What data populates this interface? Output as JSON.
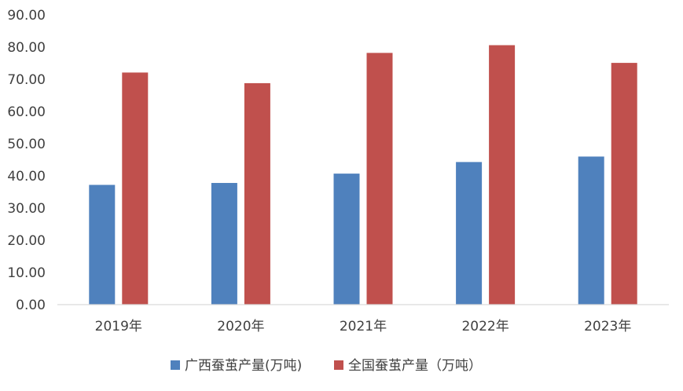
{
  "chart_data": {
    "type": "bar",
    "title": "",
    "xlabel": "",
    "ylabel": "",
    "categories": [
      "2019年",
      "2020年",
      "2021年",
      "2022年",
      "2023年"
    ],
    "series": [
      {
        "name": "广西蚕茧产量(万吨)",
        "color": "#4F81BD",
        "values": [
          37.2,
          37.8,
          40.7,
          44.3,
          46.0
        ]
      },
      {
        "name": "全国蚕茧产量（万吨）",
        "color": "#C0504D",
        "values": [
          72.1,
          68.8,
          78.2,
          80.6,
          75.1
        ]
      }
    ],
    "ylim": [
      0,
      90
    ],
    "yticks": [
      "0.00",
      "10.00",
      "20.00",
      "30.00",
      "40.00",
      "50.00",
      "60.00",
      "70.00",
      "80.00",
      "90.00"
    ],
    "grid": false,
    "legend_position": "bottom"
  }
}
